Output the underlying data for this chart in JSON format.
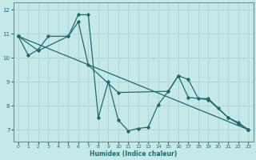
{
  "xlabel": "Humidex (Indice chaleur)",
  "bg_color": "#c5e9e9",
  "line_color": "#1e6b6b",
  "grid_color": "#b0d5d5",
  "xlim": [
    -0.5,
    23.5
  ],
  "ylim": [
    6.5,
    12.3
  ],
  "yticks": [
    7,
    8,
    9,
    10,
    11,
    12
  ],
  "xticks": [
    0,
    1,
    2,
    3,
    4,
    5,
    6,
    7,
    8,
    9,
    10,
    11,
    12,
    13,
    14,
    15,
    16,
    17,
    18,
    19,
    20,
    21,
    22,
    23
  ],
  "line1_x": [
    0,
    1,
    2,
    3,
    5,
    6,
    7,
    8,
    9,
    10,
    11,
    12,
    13,
    14,
    15,
    16,
    17,
    18,
    19,
    20,
    21,
    22,
    23
  ],
  "line1_y": [
    10.9,
    10.1,
    10.35,
    10.9,
    10.9,
    11.8,
    11.8,
    7.5,
    9.0,
    7.4,
    6.95,
    7.05,
    7.1,
    8.05,
    8.6,
    9.25,
    9.1,
    8.3,
    8.3,
    7.9,
    7.5,
    7.3,
    7.0
  ],
  "line2_x": [
    0,
    23
  ],
  "line2_y": [
    10.9,
    7.0
  ],
  "line3_x": [
    0,
    2,
    5,
    6,
    7,
    10,
    15,
    16,
    17,
    19,
    21,
    22,
    23
  ],
  "line3_y": [
    10.9,
    10.3,
    10.9,
    11.5,
    9.7,
    8.55,
    8.6,
    9.25,
    8.35,
    8.25,
    7.5,
    7.25,
    7.0
  ]
}
